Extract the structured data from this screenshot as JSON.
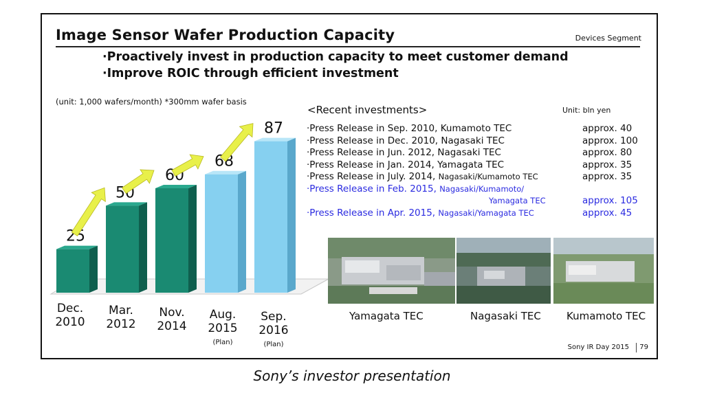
{
  "slide": {
    "title": "Image Sensor Wafer Production Capacity",
    "segment": "Devices Segment",
    "bullets": [
      "·Proactively invest in production capacity to meet customer demand",
      "·Improve ROIC through efficient investment"
    ],
    "unit_note": "(unit: 1,000 wafers/month) *300mm wafer basis",
    "footer": "Sony IR Day 2015",
    "page_number": "79"
  },
  "chart_data": {
    "type": "bar",
    "categories": [
      {
        "line1": "Dec.",
        "line2": "2010",
        "note": ""
      },
      {
        "line1": "Mar.",
        "line2": "2012",
        "note": ""
      },
      {
        "line1": "Nov.",
        "line2": "2014",
        "note": ""
      },
      {
        "line1": "Aug.",
        "line2": "2015",
        "note": "(Plan)"
      },
      {
        "line1": "Sep.",
        "line2": "2016",
        "note": "(Plan)"
      }
    ],
    "values": [
      25,
      50,
      60,
      68,
      87
    ],
    "planned": [
      false,
      false,
      false,
      true,
      true
    ],
    "title": "",
    "ylim": [
      0,
      90
    ],
    "grid": false,
    "legend": "none",
    "colors": {
      "actual": "#1a8a72",
      "plan": "#86d0f0",
      "arrow": "#e8f04a"
    }
  },
  "investments": {
    "header": "<Recent investments>",
    "unit": "Unit: bln yen",
    "rows": [
      {
        "desc": "·Press Release in Sep. 2010, Kumamoto TEC",
        "small": "",
        "amount": "approx. 40",
        "color": "#111111"
      },
      {
        "desc": "·Press Release in Dec. 2010, Nagasaki TEC",
        "small": "",
        "amount": "approx. 100",
        "color": "#111111"
      },
      {
        "desc": "·Press Release in Jun. 2012, Nagasaki TEC",
        "small": "",
        "amount": "approx. 80",
        "color": "#111111"
      },
      {
        "desc": "·Press Release in Jan. 2014, Yamagata TEC",
        "small": "",
        "amount": "approx. 35",
        "color": "#111111"
      },
      {
        "desc": "·Press Release in July. 2014, ",
        "small": "Nagasaki/Kumamoto TEC",
        "amount": "approx. 35",
        "color": "#111111"
      },
      {
        "desc": "·Press Release in Feb. 2015, ",
        "small": "Nagasaki/Kumamoto/",
        "amount": "",
        "color": "#2a2ae0"
      },
      {
        "desc": "",
        "small": "Yamagata TEC",
        "amount": "approx. 105",
        "color": "#2a2ae0",
        "indent": true
      },
      {
        "desc": "·Press Release in Apr. 2015, ",
        "small": "Nagasaki/Yamagata TEC",
        "amount": "approx. 45",
        "color": "#2a2ae0"
      }
    ]
  },
  "photos": [
    {
      "label": "Yamagata TEC"
    },
    {
      "label": "Nagasaki TEC"
    },
    {
      "label": "Kumamoto TEC"
    }
  ],
  "caption": "Sony’s investor presentation"
}
